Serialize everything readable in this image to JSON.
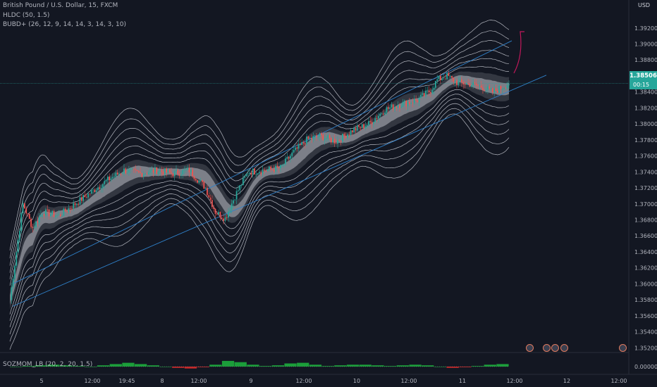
{
  "legend": {
    "symbol_title": "British Pound / U.S. Dollar, 15, FXCM",
    "indicator_hldc": "HLDC (50, 1.5)",
    "indicator_bubd": "BUBD+ (26, 12, 9, 14, 14, 3, 14, 3, 10)",
    "indicator_sozm": "SOZMOM_LB (20, 2, 20, 1.5)"
  },
  "price_axis": {
    "currency": "USD",
    "ticks": [
      "1.39200",
      "1.39000",
      "1.38800",
      "1.38600",
      "1.38400",
      "1.38200",
      "1.38000",
      "1.37800",
      "1.37600",
      "1.37400",
      "1.37200",
      "1.37000",
      "1.36800",
      "1.36600",
      "1.36400",
      "1.36200",
      "1.36000",
      "1.35800",
      "1.35600",
      "1.35400",
      "1.35200"
    ],
    "current_price": "1.38506",
    "countdown": "00:15",
    "oscillator_tick": "0.00000"
  },
  "time_axis": {
    "labels": [
      "5",
      "12:00",
      "19:45",
      "8",
      "12:00",
      "9",
      "12:00",
      "10",
      "12:00",
      "11",
      "12:00",
      "12",
      "12:00"
    ]
  },
  "colors": {
    "background": "#131722",
    "up_candle": "#26a69a",
    "down_candle": "#ef5350",
    "channel_line": "#2f80c9",
    "band_line": "#d1d4dc",
    "core_band": "#9598a1",
    "projection": "#c2185b"
  },
  "chart_data": {
    "type": "candlestick",
    "title": "British Pound / U.S. Dollar, 15, FXCM",
    "x_labels": [
      "5",
      "12:00",
      "19:45",
      "8",
      "12:00",
      "9",
      "12:00",
      "10",
      "12:00",
      "11",
      "12:00",
      "12",
      "12:00"
    ],
    "ylim": [
      1.3515,
      1.3955
    ],
    "current_price": 1.38506,
    "price_path": [
      [
        0,
        1.358
      ],
      [
        4,
        1.364
      ],
      [
        8,
        1.37
      ],
      [
        14,
        1.367
      ],
      [
        20,
        1.369
      ],
      [
        30,
        1.3685
      ],
      [
        40,
        1.37
      ],
      [
        50,
        1.3715
      ],
      [
        60,
        1.373
      ],
      [
        70,
        1.3742
      ],
      [
        80,
        1.3738
      ],
      [
        90,
        1.3742
      ],
      [
        100,
        1.3738
      ],
      [
        110,
        1.3742
      ],
      [
        120,
        1.372
      ],
      [
        126,
        1.369
      ],
      [
        132,
        1.3682
      ],
      [
        138,
        1.371
      ],
      [
        146,
        1.374
      ],
      [
        156,
        1.3742
      ],
      [
        166,
        1.3745
      ],
      [
        174,
        1.3765
      ],
      [
        182,
        1.378
      ],
      [
        190,
        1.3785
      ],
      [
        200,
        1.3778
      ],
      [
        210,
        1.3792
      ],
      [
        220,
        1.38
      ],
      [
        230,
        1.3818
      ],
      [
        240,
        1.3825
      ],
      [
        250,
        1.383
      ],
      [
        258,
        1.3842
      ],
      [
        262,
        1.3855
      ],
      [
        268,
        1.386
      ],
      [
        274,
        1.3852
      ],
      [
        282,
        1.385
      ],
      [
        290,
        1.3846
      ],
      [
        296,
        1.384
      ],
      [
        302,
        1.3846
      ],
      [
        306,
        1.3851
      ]
    ],
    "oscillator": [
      0,
      0.1,
      0.2,
      0.3,
      0.2,
      0.1,
      0,
      0.2,
      0.4,
      0.6,
      0.4,
      0.2,
      0,
      -0.2,
      -0.3,
      -0.1,
      0.3,
      0.9,
      0.7,
      0.3,
      0.1,
      0.2,
      0.5,
      0.6,
      0.3,
      0.1,
      0.2,
      0.3,
      0.3,
      0.2,
      0.1,
      0.2,
      0.3,
      0.2,
      0,
      -0.2,
      -0.1,
      0.1,
      0.3,
      0.4
    ]
  }
}
